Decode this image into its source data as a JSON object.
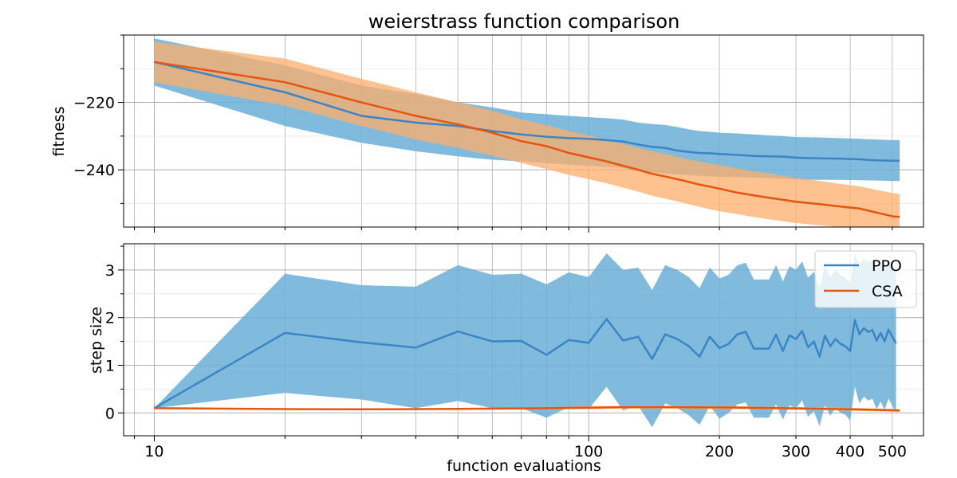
{
  "chart_data": [
    {
      "type": "line",
      "title": "weierstrass function comparison",
      "xlabel": "",
      "ylabel": "fitness",
      "xscale": "log",
      "xlim": [
        8.5,
        590
      ],
      "ylim": [
        -257,
        -200
      ],
      "yticks": [
        -220,
        -240
      ],
      "ytick_labels": [
        "−220",
        "−240"
      ],
      "grid": true,
      "series": [
        {
          "name": "PPO",
          "color": "#3a85c5",
          "band_color": "#6aaed6",
          "x": [
            10,
            20,
            30,
            40,
            50,
            60,
            70,
            80,
            90,
            100,
            110,
            120,
            130,
            140,
            150,
            160,
            170,
            180,
            190,
            200,
            220,
            240,
            260,
            280,
            300,
            340,
            380,
            420,
            460,
            500,
            520
          ],
          "mean": [
            -208,
            -217,
            -224,
            -226,
            -227,
            -228.5,
            -229.5,
            -230.2,
            -230.6,
            -230.8,
            -231.2,
            -231.6,
            -232.5,
            -233.2,
            -233.5,
            -234.3,
            -234.7,
            -235.0,
            -235.1,
            -235.3,
            -235.6,
            -235.9,
            -236.0,
            -236.1,
            -236.4,
            -236.6,
            -236.7,
            -236.9,
            -237.2,
            -237.3,
            -237.3
          ],
          "upper": [
            -201,
            -209,
            -215,
            -217.5,
            -220,
            -221.5,
            -223,
            -223.5,
            -224,
            -224.4,
            -224.7,
            -225.1,
            -226,
            -226.4,
            -226.7,
            -227.3,
            -228.0,
            -228.5,
            -228.7,
            -229.0,
            -229.2,
            -229.5,
            -229.8,
            -230.0,
            -230.3,
            -230.4,
            -230.6,
            -230.8,
            -231.0,
            -231.2,
            -231.2
          ],
          "lower": [
            -215,
            -227,
            -232,
            -234.5,
            -236,
            -237,
            -237.5,
            -238,
            -238.5,
            -238.8,
            -239.1,
            -239.5,
            -240.3,
            -240.8,
            -241.1,
            -241.4,
            -241.6,
            -241.8,
            -242.0,
            -242.1,
            -242.2,
            -242.3,
            -242.5,
            -242.7,
            -242.9,
            -243.0,
            -243.0,
            -243.1,
            -243.2,
            -243.3,
            -243.3
          ]
        },
        {
          "name": "CSA",
          "color": "#e6550d",
          "band_color": "#fdae6b",
          "x": [
            10,
            20,
            30,
            40,
            50,
            60,
            70,
            80,
            90,
            100,
            110,
            120,
            130,
            140,
            150,
            160,
            170,
            180,
            190,
            200,
            220,
            240,
            260,
            280,
            300,
            340,
            380,
            420,
            460,
            500,
            520
          ],
          "mean": [
            -208,
            -214,
            -220,
            -224,
            -226.5,
            -229,
            -231.5,
            -233,
            -235,
            -236.3,
            -237.5,
            -238.8,
            -240,
            -241.2,
            -242,
            -242.8,
            -243.6,
            -244.4,
            -245,
            -245.6,
            -246.8,
            -247.6,
            -248.3,
            -248.9,
            -249.5,
            -250.2,
            -250.9,
            -251.5,
            -252.7,
            -253.8,
            -254.0
          ],
          "upper": [
            -202,
            -207,
            -213,
            -217,
            -220,
            -222.5,
            -225,
            -226.8,
            -228.5,
            -229.8,
            -231,
            -232.3,
            -233.5,
            -234.5,
            -235.3,
            -236.2,
            -236.9,
            -237.6,
            -238.1,
            -238.6,
            -239.6,
            -240.4,
            -241.1,
            -241.8,
            -242.4,
            -243.3,
            -244.2,
            -244.9,
            -246.0,
            -246.9,
            -247.2
          ],
          "lower": [
            -214,
            -221,
            -227,
            -231,
            -233.5,
            -235.8,
            -238,
            -239.8,
            -241.5,
            -242.8,
            -244,
            -245.3,
            -246.5,
            -247.7,
            -248.6,
            -249.4,
            -250.2,
            -251,
            -251.7,
            -252.3,
            -253.2,
            -254,
            -254.7,
            -255.3,
            -255.8,
            -256.5,
            -257,
            -257,
            -257,
            -257,
            -257
          ]
        }
      ]
    },
    {
      "type": "line",
      "title": "",
      "xlabel": "function evaluations",
      "ylabel": "step size",
      "xscale": "log",
      "xlim": [
        8.5,
        590
      ],
      "ylim": [
        -0.48,
        3.55
      ],
      "yticks": [
        0,
        1,
        2,
        3
      ],
      "ytick_labels": [
        "0",
        "1",
        "2",
        "3"
      ],
      "xticks": [
        10,
        100,
        200,
        300,
        400,
        500
      ],
      "xtick_labels": [
        "10",
        "100",
        "200",
        "300",
        "400",
        "500"
      ],
      "grid": true,
      "legend": "top-right",
      "series": [
        {
          "name": "PPO",
          "color": "#3a85c5",
          "band_color": "#6aaed6",
          "x": [
            10,
            20,
            30,
            40,
            50,
            60,
            70,
            80,
            90,
            100,
            110,
            120,
            130,
            140,
            150,
            160,
            170,
            180,
            190,
            200,
            210,
            220,
            230,
            240,
            250,
            260,
            270,
            280,
            290,
            300,
            310,
            320,
            330,
            340,
            350,
            360,
            370,
            380,
            390,
            400,
            410,
            420,
            430,
            440,
            450,
            460,
            470,
            480,
            490,
            500,
            510
          ],
          "mean": [
            0.1,
            1.68,
            1.48,
            1.37,
            1.71,
            1.5,
            1.51,
            1.22,
            1.53,
            1.47,
            1.97,
            1.52,
            1.6,
            1.13,
            1.65,
            1.55,
            1.4,
            1.18,
            1.6,
            1.36,
            1.45,
            1.65,
            1.7,
            1.35,
            1.35,
            1.35,
            1.64,
            1.3,
            1.63,
            1.55,
            1.72,
            1.38,
            1.5,
            1.18,
            1.62,
            1.4,
            1.55,
            1.45,
            1.4,
            1.3,
            1.95,
            1.65,
            1.78,
            1.7,
            1.74,
            1.52,
            1.68,
            1.5,
            1.75,
            1.6,
            1.46
          ],
          "upper": [
            0.1,
            2.92,
            2.68,
            2.65,
            3.1,
            2.9,
            2.92,
            2.7,
            2.95,
            2.85,
            3.35,
            3.0,
            3.05,
            2.58,
            3.1,
            3.0,
            2.85,
            2.62,
            3.05,
            2.82,
            2.9,
            3.1,
            3.15,
            2.8,
            2.8,
            2.8,
            3.1,
            2.76,
            3.08,
            3.0,
            3.18,
            2.84,
            2.96,
            2.62,
            3.08,
            2.86,
            3.0,
            2.9,
            2.84,
            2.72,
            3.32,
            3.12,
            3.24,
            3.16,
            3.2,
            2.98,
            3.14,
            2.96,
            3.2,
            3.06,
            2.94
          ],
          "lower": [
            0.1,
            0.42,
            0.28,
            0.1,
            0.25,
            0.1,
            0.1,
            -0.1,
            0.12,
            0.08,
            0.55,
            0.05,
            0.15,
            -0.3,
            0.2,
            0.1,
            -0.05,
            -0.25,
            0.15,
            -0.12,
            0.0,
            0.18,
            0.22,
            -0.1,
            -0.1,
            -0.1,
            0.18,
            -0.14,
            0.16,
            0.1,
            0.26,
            -0.08,
            0.04,
            -0.28,
            0.16,
            -0.06,
            0.1,
            0.0,
            -0.04,
            -0.16,
            0.55,
            0.2,
            0.34,
            0.26,
            0.3,
            0.08,
            0.24,
            0.06,
            0.3,
            0.16,
            0.0
          ]
        },
        {
          "name": "CSA",
          "color": "#e6550d",
          "band_color": "#fdae6b",
          "x": [
            10,
            20,
            30,
            40,
            50,
            60,
            70,
            80,
            90,
            100,
            120,
            150,
            200,
            250,
            300,
            350,
            400,
            450,
            500,
            520
          ],
          "mean": [
            0.1,
            0.08,
            0.075,
            0.08,
            0.085,
            0.09,
            0.095,
            0.1,
            0.105,
            0.11,
            0.12,
            0.12,
            0.115,
            0.105,
            0.095,
            0.085,
            0.075,
            0.065,
            0.055,
            0.05
          ],
          "upper": [
            0.1,
            0.09,
            0.085,
            0.09,
            0.095,
            0.105,
            0.115,
            0.125,
            0.135,
            0.14,
            0.15,
            0.15,
            0.145,
            0.135,
            0.125,
            0.115,
            0.105,
            0.095,
            0.085,
            0.08
          ],
          "lower": [
            0.1,
            0.07,
            0.065,
            0.07,
            0.075,
            0.075,
            0.075,
            0.075,
            0.075,
            0.08,
            0.09,
            0.09,
            0.085,
            0.075,
            0.065,
            0.055,
            0.045,
            0.035,
            0.025,
            0.02
          ]
        }
      ]
    }
  ]
}
